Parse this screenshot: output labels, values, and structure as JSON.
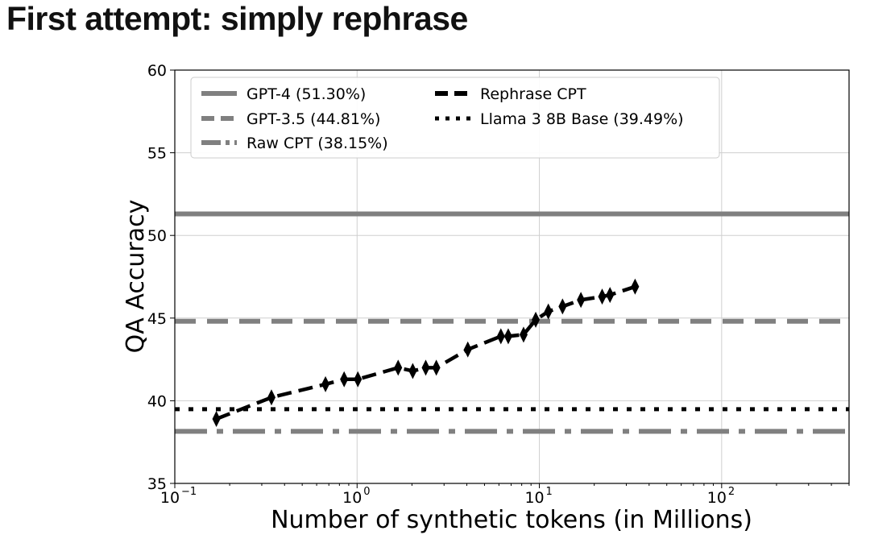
{
  "slide_title": "First attempt: simply rephrase",
  "chart_data": {
    "type": "line",
    "title": "",
    "xlabel": "Number of synthetic tokens (in Millions)",
    "ylabel": "QA Accuracy",
    "xscale": "log",
    "xlim": [
      0.1,
      500
    ],
    "ylim": [
      35,
      60
    ],
    "yticks": [
      35,
      40,
      45,
      50,
      55,
      60
    ],
    "xticks": [
      {
        "value": 0.1,
        "base": "10",
        "exp": "−1"
      },
      {
        "value": 1,
        "base": "10",
        "exp": "0"
      },
      {
        "value": 10,
        "base": "10",
        "exp": "1"
      },
      {
        "value": 100,
        "base": "10",
        "exp": "2"
      }
    ],
    "grid": true,
    "legend_placement": "top-left",
    "reference_lines": [
      {
        "name": "GPT-4 (51.30%)",
        "value": 51.3,
        "style": "solid",
        "color": "#808080"
      },
      {
        "name": "GPT-3.5 (44.81%)",
        "value": 44.81,
        "style": "dashed",
        "color": "#808080"
      },
      {
        "name": "Raw CPT (38.15%)",
        "value": 38.15,
        "style": "dashdot",
        "color": "#808080"
      },
      {
        "name": "Llama 3 8B Base (39.49%)",
        "value": 39.49,
        "style": "dotted",
        "color": "#000000"
      }
    ],
    "series": [
      {
        "name": "Rephrase CPT",
        "style": "dashed",
        "marker": "thin_diamond",
        "color": "#000000",
        "x": [
          0.169,
          0.339,
          0.671,
          0.849,
          1.01,
          1.68,
          2.02,
          2.38,
          2.72,
          4.05,
          6.15,
          6.75,
          8.19,
          9.55,
          11.2,
          13.4,
          16.9,
          22.1,
          24.4,
          33.5
        ],
        "y": [
          38.9,
          40.2,
          41.0,
          41.3,
          41.3,
          42.0,
          41.8,
          42.0,
          42.0,
          43.1,
          43.9,
          43.9,
          44.0,
          44.9,
          45.4,
          45.7,
          46.1,
          46.3,
          46.4,
          46.9
        ]
      }
    ],
    "legend_order": [
      "GPT-4 (51.30%)",
      "GPT-3.5 (44.81%)",
      "Raw CPT (38.15%)",
      "Rephrase CPT",
      "Llama 3 8B Base (39.49%)"
    ]
  }
}
